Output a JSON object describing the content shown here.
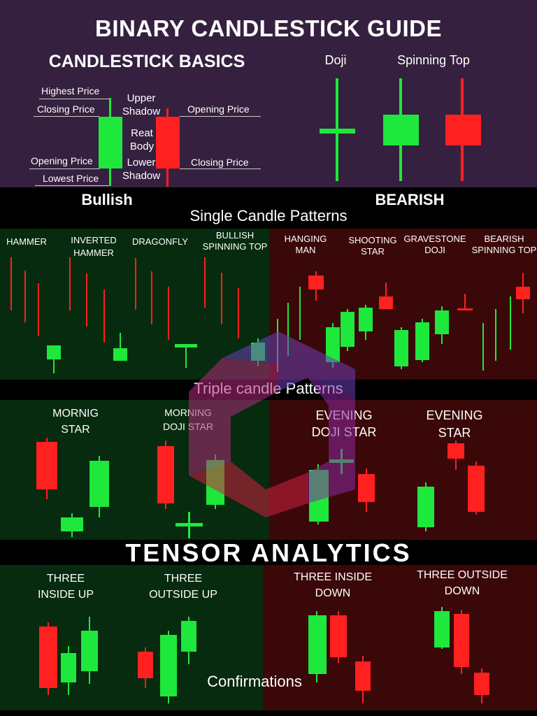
{
  "title": "BINARY CANDLESTICK GUIDE",
  "basics": {
    "heading": "CANDLESTICK BASICS",
    "bull_labels": [
      "Highest Price",
      "Closing Price",
      "Opening Price",
      "Lowest Price"
    ],
    "upper_shadow": "Upper Shadow",
    "real_body": "Reat Body",
    "lower_shadow": "Lower Shadow",
    "bear_labels": [
      "Opening Price",
      "Closing Price"
    ],
    "doji": "Doji",
    "spinning_top": "Spinning Top",
    "bullish": "Bullish",
    "bearish": "BEARISH"
  },
  "single": {
    "heading": "Single Candle Patterns",
    "bull_names": [
      "HAMMER",
      "INVERTED HAMMER",
      "DRAGONFLY",
      "BULLISH SPINNING TOP"
    ],
    "bear_names": [
      "HANGING MAN",
      "SHOOTING STAR",
      "GRAVESTONE DOJI",
      "BEARISH SPINNING TOP"
    ]
  },
  "triple": {
    "heading": "Triple candle Patterns",
    "names": [
      "MORNIG STAR",
      "MORNING DOJI STAR",
      "EVENING DOJI STAR",
      "EVENING STAR"
    ]
  },
  "brand": "TENSOR ANALYTICS",
  "confirm": {
    "names": [
      "THREE INSIDE UP",
      "THREE OUTSIDE UP",
      "THREE INSIDE DOWN",
      "THREE OUTSIDE DOWN"
    ],
    "footer": "Confirmations"
  },
  "colors": {
    "bull": "#1ee83c",
    "bear": "#ff2020",
    "purple_bg": "#35203f",
    "green_bg": "#062b0e",
    "red_bg": "#3a0808"
  }
}
